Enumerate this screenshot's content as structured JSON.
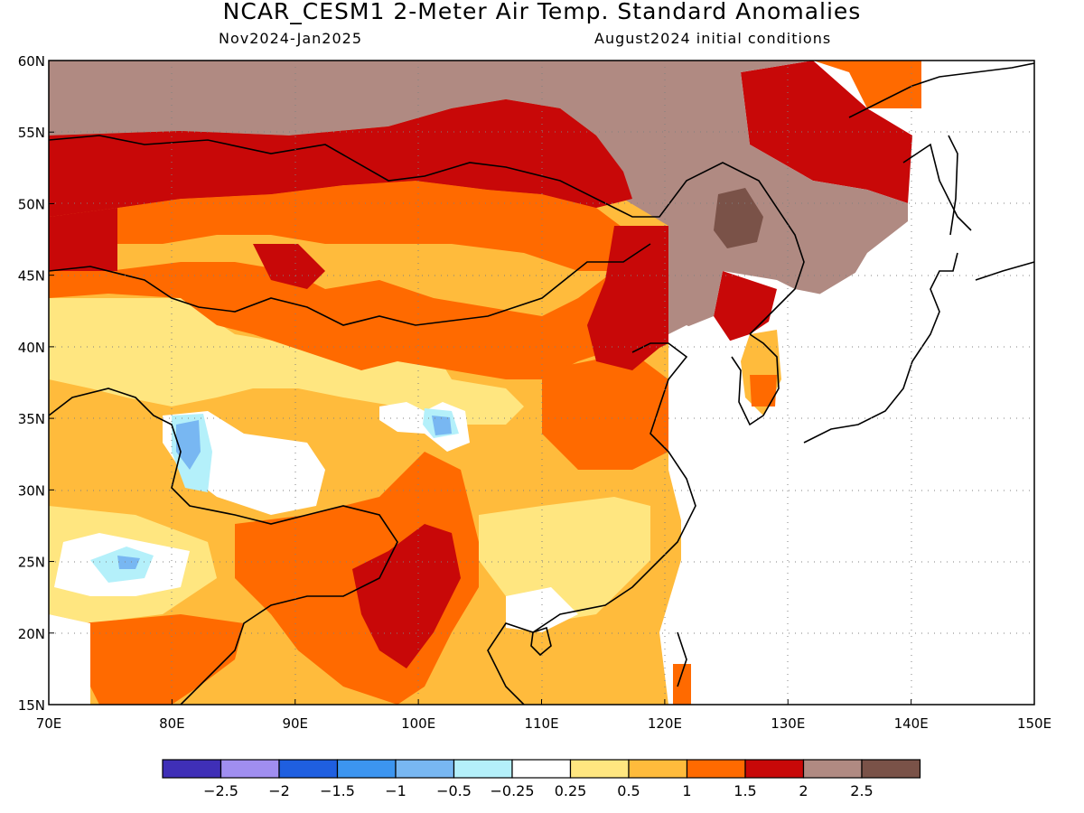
{
  "header": {
    "title": "NCAR_CESM1 2-Meter Air Temp. Standard Anomalies",
    "period": "Nov2024-Jan2025",
    "init": "August2024 initial conditions"
  },
  "axes": {
    "lat_labels": [
      "60N",
      "55N",
      "50N",
      "45N",
      "40N",
      "35N",
      "30N",
      "25N",
      "20N",
      "15N"
    ],
    "lat_values": [
      60,
      55,
      50,
      45,
      40,
      35,
      30,
      25,
      20,
      15
    ],
    "lon_labels": [
      "70E",
      "80E",
      "90E",
      "100E",
      "110E",
      "120E",
      "130E",
      "140E",
      "150E"
    ],
    "lon_values": [
      70,
      80,
      90,
      100,
      110,
      120,
      130,
      140,
      150
    ],
    "lat_range": [
      15,
      60
    ],
    "lon_range": [
      70,
      150
    ]
  },
  "legend": {
    "colors": [
      "#3f2fb7",
      "#a08ef0",
      "#1f5fe0",
      "#3c95f0",
      "#78b7f2",
      "#b4f0fa",
      "#ffffff",
      "#ffe680",
      "#ffbb3c",
      "#ff6a00",
      "#c80808",
      "#b08a82",
      "#7a5248"
    ],
    "labels": [
      "-2.5",
      "-2",
      "-1.5",
      "-1",
      "-0.5",
      "-0.25",
      "0.25",
      "0.5",
      "1",
      "1.5",
      "2",
      "2.5"
    ]
  }
}
